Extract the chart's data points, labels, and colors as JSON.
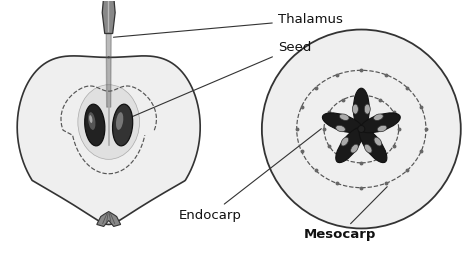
{
  "bg_color": "#ffffff",
  "apple_fill": "#efefef",
  "apple_edge": "#333333",
  "stem_fill": "#888888",
  "stem_edge": "#333333",
  "calyx_fill": "#888888",
  "seed_dark": "#222222",
  "seed_mid": "#555555",
  "seed_light": "#aaaaaa",
  "dashed_color": "#555555",
  "label_color": "#111111",
  "arrow_color": "#333333",
  "labels": {
    "thalamus": "Thalamus",
    "seed": "Seed",
    "endocarp": "Endocarp",
    "mesocarp": "Mesocarp"
  },
  "figsize": [
    4.74,
    2.57
  ],
  "dpi": 100
}
